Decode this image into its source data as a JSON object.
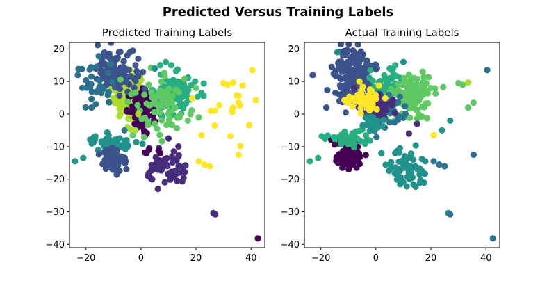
{
  "figure": {
    "suptitle": "Predicted Versus Training Labels"
  },
  "colors": {
    "c0": "#440154",
    "c1": "#472d7b",
    "c2": "#3b528b",
    "c3": "#2c728e",
    "c4": "#21918c",
    "c5": "#28ae80",
    "c6": "#5ec962",
    "c7": "#addc30",
    "c8": "#fde725"
  },
  "chart_data": [
    {
      "type": "scatter",
      "title": "Predicted Training Labels",
      "xlabel": "",
      "ylabel": "",
      "xlim": [
        -26,
        45
      ],
      "ylim": [
        -41,
        22
      ],
      "xticks": [
        -20,
        0,
        20,
        40
      ],
      "yticks": [
        20,
        10,
        0,
        -10,
        -20,
        -30,
        -40
      ],
      "grid": false,
      "clusters": [
        {
          "label": 7,
          "cx": -5,
          "cy": 6,
          "sx": 2.4,
          "sy": 3.5,
          "n": 150
        },
        {
          "label": 0,
          "cx": 1,
          "cy": 1,
          "sx": 3.0,
          "sy": 3.0,
          "n": 90
        },
        {
          "label": 2,
          "cx": -9,
          "cy": 13,
          "sx": 3.5,
          "sy": 3.0,
          "n": 110
        },
        {
          "label": 3,
          "cx": -17,
          "cy": 9,
          "sx": 3.5,
          "sy": 4.0,
          "n": 30
        },
        {
          "label": 5,
          "cx": 12,
          "cy": 6,
          "sx": 4.0,
          "sy": 3.0,
          "n": 110
        },
        {
          "label": 6,
          "cx": 7,
          "cy": 4,
          "sx": 5.0,
          "sy": 5.0,
          "n": 70
        },
        {
          "label": 8,
          "cx": 30,
          "cy": 3,
          "sx": 7.0,
          "sy": 6.0,
          "n": 16
        },
        {
          "label": 4,
          "cx": -10,
          "cy": -9,
          "sx": 4.0,
          "sy": 1.2,
          "n": 60
        },
        {
          "label": 2,
          "cx": -10,
          "cy": -14,
          "sx": 2.5,
          "sy": 2.2,
          "n": 70
        },
        {
          "label": 1,
          "cx": 10,
          "cy": -17,
          "sx": 4.0,
          "sy": 3.0,
          "n": 60
        },
        {
          "label": 0,
          "cx": 4,
          "cy": -12,
          "sx": 1.5,
          "sy": 0.7,
          "n": 3
        }
      ],
      "points": [
        {
          "x": 40.5,
          "y": 13.5,
          "label": 8
        },
        {
          "x": 35.5,
          "y": 3.5,
          "label": 8
        },
        {
          "x": 33.5,
          "y": 2,
          "label": 8
        },
        {
          "x": 35.5,
          "y": -12.5,
          "label": 8
        },
        {
          "x": 42.5,
          "y": -38.2,
          "label": 0
        },
        {
          "x": 26.3,
          "y": -30.4,
          "label": 1
        },
        {
          "x": 27,
          "y": -30.8,
          "label": 1
        },
        {
          "x": 21,
          "y": -14.5,
          "label": 8
        },
        {
          "x": 23,
          "y": -15.5,
          "label": 8
        },
        {
          "x": 25,
          "y": -16,
          "label": 8
        },
        {
          "x": 22,
          "y": -6.5,
          "label": 8
        },
        {
          "x": 30,
          "y": 9.5,
          "label": 8
        },
        {
          "x": 31.5,
          "y": 9,
          "label": 8
        },
        {
          "x": 33.5,
          "y": 9.7,
          "label": 8
        },
        {
          "x": -24,
          "y": -14.5,
          "label": 4
        },
        {
          "x": -21,
          "y": -13.5,
          "label": 4
        },
        {
          "x": -23,
          "y": 12,
          "label": 3
        },
        {
          "x": -18,
          "y": 2,
          "label": 3
        },
        {
          "x": -8,
          "y": 19,
          "label": 2
        },
        {
          "x": -5,
          "y": 18,
          "label": 2
        },
        {
          "x": -4,
          "y": 19,
          "label": 2
        },
        {
          "x": -2,
          "y": 15,
          "label": 2
        },
        {
          "x": -1,
          "y": 17,
          "label": 2
        },
        {
          "x": 5,
          "y": 14,
          "label": 4
        },
        {
          "x": 7,
          "y": 15,
          "label": 5
        },
        {
          "x": 9,
          "y": 16,
          "label": 5
        },
        {
          "x": 11,
          "y": 15,
          "label": 5
        },
        {
          "x": 20,
          "y": 8,
          "label": 6
        },
        {
          "x": 21,
          "y": -1,
          "label": 6
        },
        {
          "x": 18,
          "y": 0,
          "label": 6
        },
        {
          "x": 17,
          "y": -2,
          "label": 6
        },
        {
          "x": -3,
          "y": -6.5,
          "label": 6
        },
        {
          "x": -2,
          "y": -5,
          "label": 7
        },
        {
          "x": 14,
          "y": -1,
          "label": 6
        },
        {
          "x": 2,
          "y": -12,
          "label": 0
        },
        {
          "x": 7,
          "y": -12,
          "label": 0
        },
        {
          "x": -6,
          "y": -5,
          "label": 3
        },
        {
          "x": -1,
          "y": 0,
          "label": 7
        }
      ]
    },
    {
      "type": "scatter",
      "title": "Actual Training Labels",
      "xlabel": "",
      "ylabel": "",
      "xlim": [
        -26,
        45
      ],
      "ylim": [
        -41,
        22
      ],
      "xticks": [
        -20,
        0,
        20,
        40
      ],
      "yticks": [
        20,
        10,
        0,
        -10,
        -20,
        -30,
        -40
      ],
      "grid": false,
      "clusters": [
        {
          "label": 2,
          "cx": -8,
          "cy": 11,
          "sx": 3.5,
          "sy": 4.5,
          "n": 170
        },
        {
          "label": 5,
          "cx": 4,
          "cy": 8,
          "sx": 3.0,
          "sy": 3.0,
          "n": 60
        },
        {
          "label": 6,
          "cx": 13,
          "cy": 6,
          "sx": 3.5,
          "sy": 2.8,
          "n": 120
        },
        {
          "label": 3,
          "cx": 4,
          "cy": 1,
          "sx": 4.0,
          "sy": 3.0,
          "n": 50
        },
        {
          "label": 1,
          "cx": 1,
          "cy": 2,
          "sx": 2.5,
          "sy": 2.0,
          "n": 40
        },
        {
          "label": 8,
          "cx": -4,
          "cy": 4,
          "sx": 3.0,
          "sy": 2.5,
          "n": 45
        },
        {
          "label": 0,
          "cx": -10,
          "cy": -13,
          "sx": 2.4,
          "sy": 1.8,
          "n": 90
        },
        {
          "label": 5,
          "cx": -10,
          "cy": -8,
          "sx": 4.0,
          "sy": 1.5,
          "n": 50
        },
        {
          "label": 4,
          "cx": 11,
          "cy": -17,
          "sx": 4.0,
          "sy": 3.0,
          "n": 60
        },
        {
          "label": 4,
          "cx": -1,
          "cy": -3,
          "sx": 2.0,
          "sy": 2.0,
          "n": 25
        }
      ],
      "points": [
        {
          "x": 40.5,
          "y": 13.5,
          "label": 3
        },
        {
          "x": 35.5,
          "y": 3.5,
          "label": 6
        },
        {
          "x": 33.5,
          "y": 2,
          "label": 6
        },
        {
          "x": 35.5,
          "y": -12.5,
          "label": 3
        },
        {
          "x": 42.5,
          "y": -38.2,
          "label": 3
        },
        {
          "x": 26.3,
          "y": -30.4,
          "label": 4
        },
        {
          "x": 27,
          "y": -30.8,
          "label": 3
        },
        {
          "x": 21,
          "y": -14.5,
          "label": 3
        },
        {
          "x": 23,
          "y": -15.5,
          "label": 3
        },
        {
          "x": 25,
          "y": -16,
          "label": 3
        },
        {
          "x": 27,
          "y": -2,
          "label": 4
        },
        {
          "x": 24,
          "y": -5,
          "label": 4
        },
        {
          "x": 30,
          "y": 9.5,
          "label": 6
        },
        {
          "x": 31.5,
          "y": 9,
          "label": 6
        },
        {
          "x": 33.5,
          "y": 9.7,
          "label": 7
        },
        {
          "x": 21,
          "y": -6.5,
          "label": 8
        },
        {
          "x": -24,
          "y": -14.5,
          "label": 5
        },
        {
          "x": -21,
          "y": -13.5,
          "label": 5
        },
        {
          "x": -23,
          "y": 12,
          "label": 2
        },
        {
          "x": -18,
          "y": 2,
          "label": 2
        },
        {
          "x": -14,
          "y": 19,
          "label": 4
        },
        {
          "x": -12,
          "y": 18,
          "label": 2
        },
        {
          "x": -8,
          "y": 19,
          "label": 2
        },
        {
          "x": 5,
          "y": 14,
          "label": 5
        },
        {
          "x": 7,
          "y": 15,
          "label": 5
        },
        {
          "x": 10,
          "y": 16,
          "label": 4
        },
        {
          "x": 17,
          "y": 13,
          "label": 6
        },
        {
          "x": 20,
          "y": 8,
          "label": 6
        },
        {
          "x": 2,
          "y": -12,
          "label": 4
        },
        {
          "x": 7,
          "y": -12,
          "label": 4
        },
        {
          "x": 12,
          "y": -6,
          "label": 1
        },
        {
          "x": 15,
          "y": -3,
          "label": 1
        },
        {
          "x": -6,
          "y": 10,
          "label": 8
        },
        {
          "x": -2,
          "y": 7,
          "label": 8
        },
        {
          "x": -8,
          "y": 8,
          "label": 1
        }
      ]
    }
  ]
}
